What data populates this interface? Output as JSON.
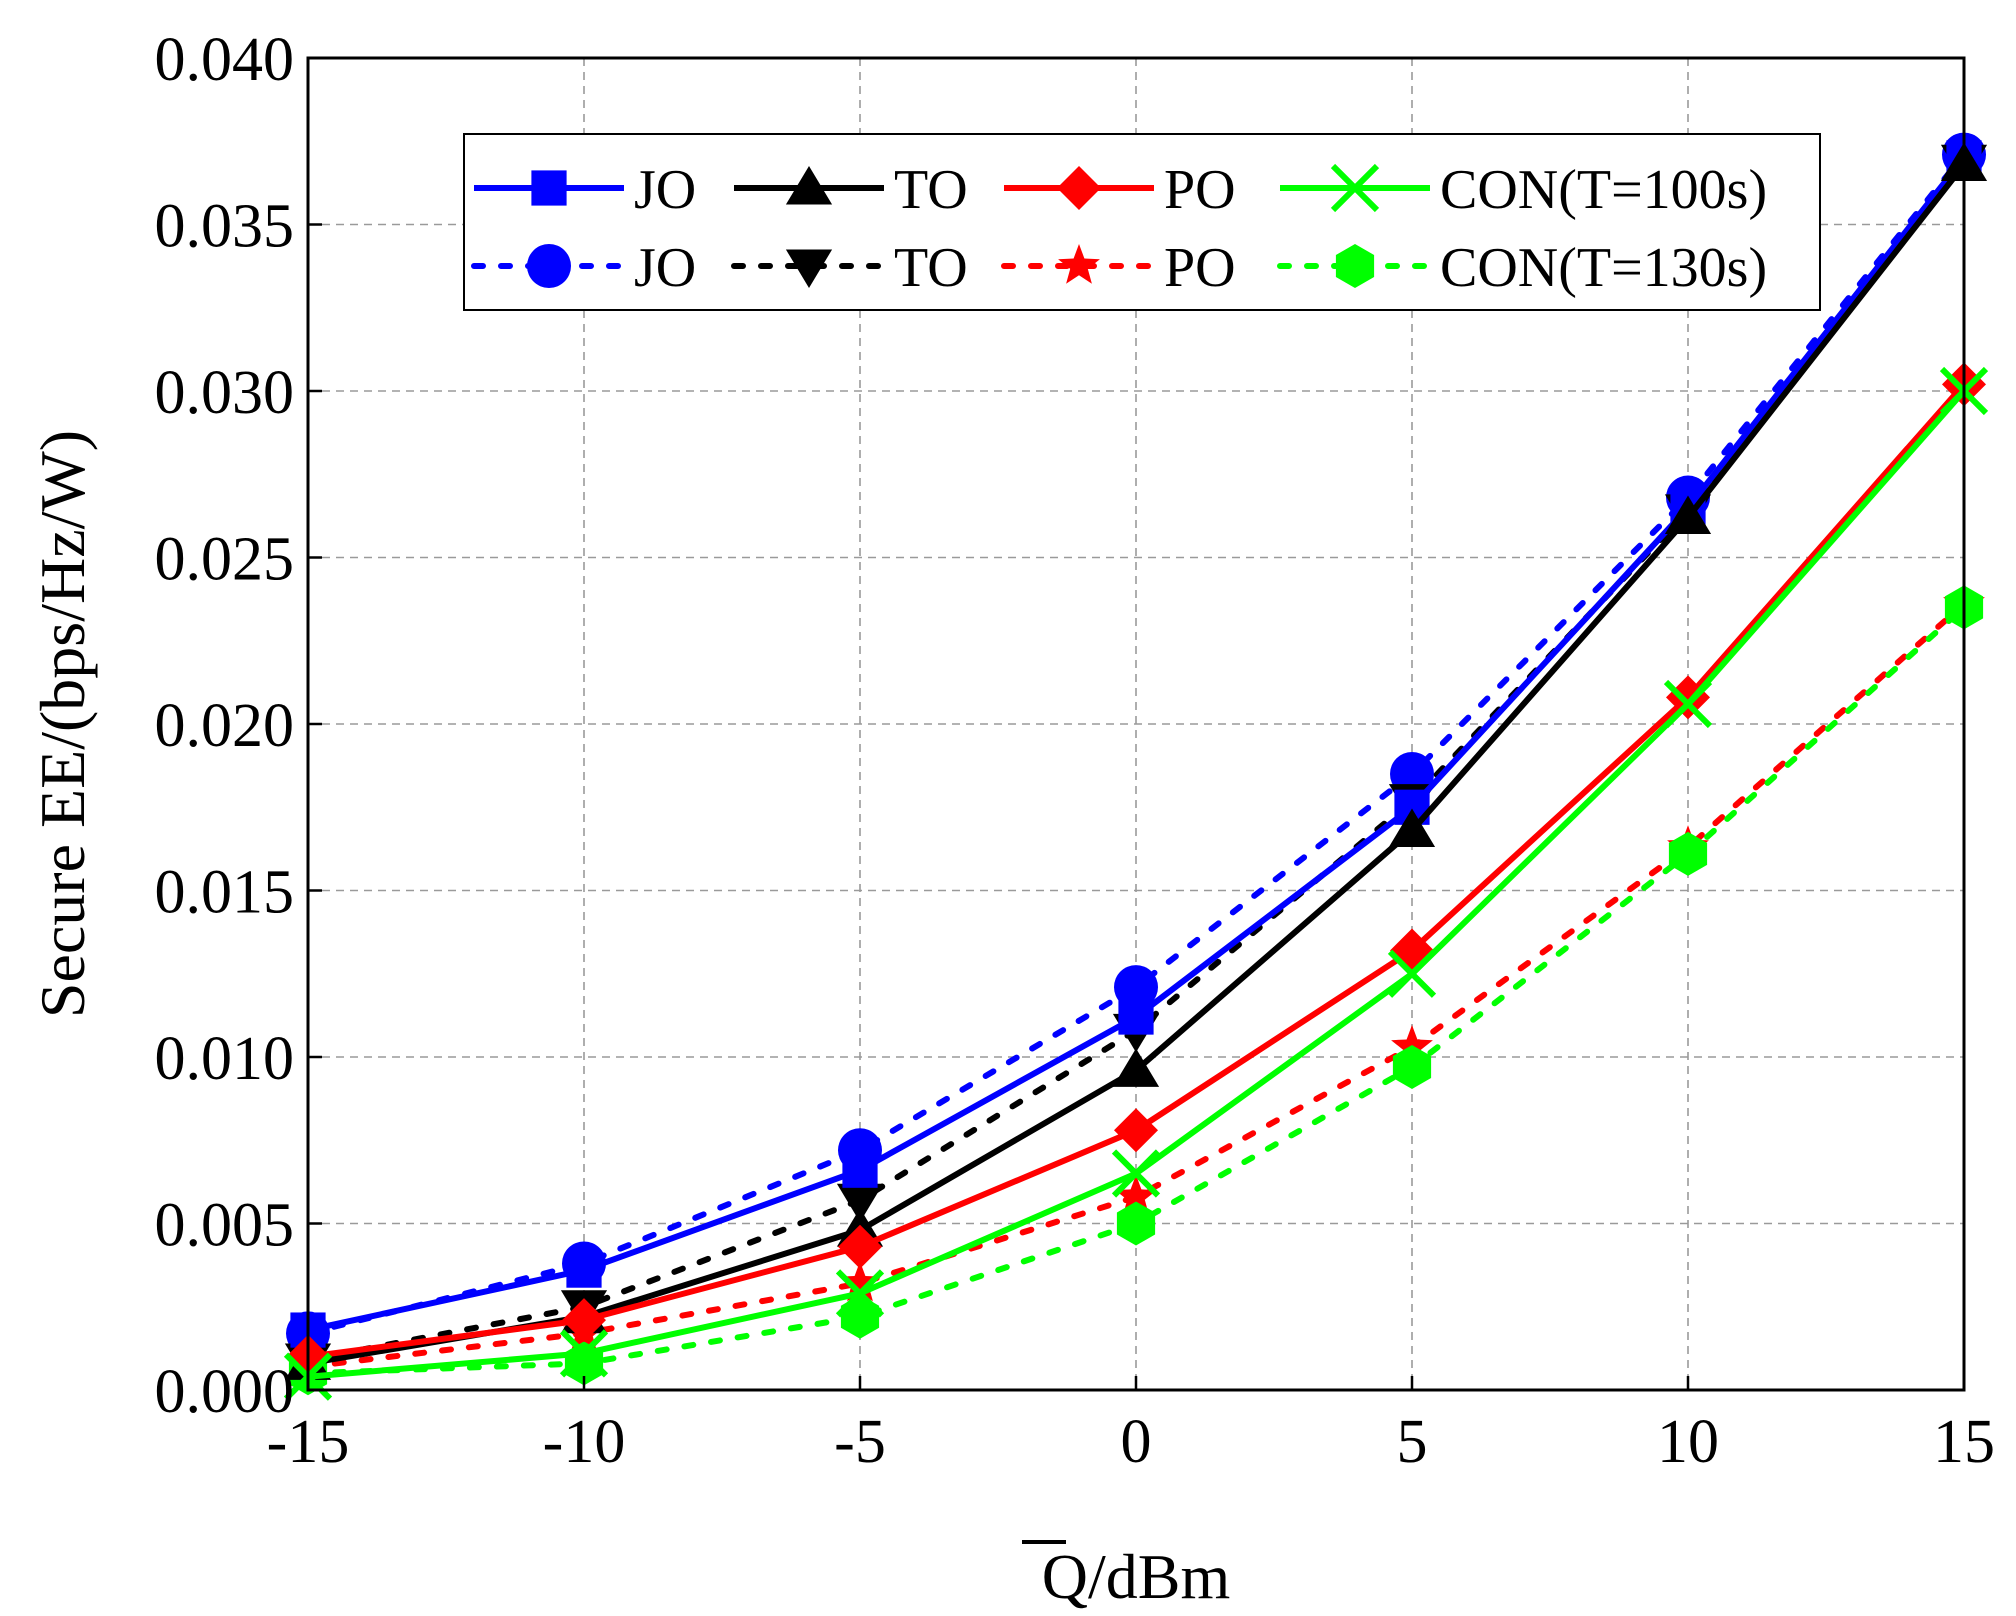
{
  "chart_data": {
    "type": "line",
    "title": "",
    "xlabel_overline": "Q",
    "xlabel_suffix": "/dBm",
    "ylabel": "Secure EE/(bps/Hz/W)",
    "x": [
      -15,
      -10,
      -5,
      0,
      5,
      10,
      15
    ],
    "xlim": [
      -15,
      15
    ],
    "ylim": [
      0,
      0.04
    ],
    "x_ticks": [
      "-15",
      "-10",
      "-5",
      "0",
      "5",
      "10",
      "15"
    ],
    "y_ticks": [
      "0.000",
      "0.005",
      "0.010",
      "0.015",
      "0.020",
      "0.025",
      "0.030",
      "0.035",
      "0.040"
    ],
    "grid": true,
    "legend_position": "top",
    "series": [
      {
        "name": "JO",
        "group": "CON(T=100s)",
        "color": "#0000ff",
        "style": "solid",
        "marker": "square",
        "values": [
          0.0018,
          0.0036,
          0.0066,
          0.0112,
          0.0175,
          0.0265,
          0.037
        ]
      },
      {
        "name": "TO",
        "group": "CON(T=100s)",
        "color": "#000000",
        "style": "solid",
        "marker": "triangle-up",
        "values": [
          0.0008,
          0.0022,
          0.0048,
          0.0096,
          0.0168,
          0.0262,
          0.0368
        ]
      },
      {
        "name": "PO",
        "group": "CON(T=100s)",
        "color": "#ff0000",
        "style": "solid",
        "marker": "diamond",
        "values": [
          0.001,
          0.0021,
          0.0043,
          0.0078,
          0.0132,
          0.0208,
          0.0302
        ]
      },
      {
        "name": "CON(T=100s)",
        "group": "CON(T=100s)",
        "color": "#00ff00",
        "style": "solid",
        "marker": "x",
        "values": [
          0.0004,
          0.0011,
          0.0029,
          0.0065,
          0.0125,
          0.0206,
          0.03
        ]
      },
      {
        "name": "JO",
        "group": "CON(T=130s)",
        "color": "#0000ff",
        "style": "dotted",
        "marker": "circle",
        "values": [
          0.0017,
          0.0038,
          0.0072,
          0.0121,
          0.0185,
          0.0268,
          0.0371
        ]
      },
      {
        "name": "TO",
        "group": "CON(T=130s)",
        "color": "#000000",
        "style": "dotted",
        "marker": "triangle-down",
        "values": [
          0.0009,
          0.0025,
          0.0057,
          0.0108,
          0.0177,
          0.0264,
          0.0369
        ]
      },
      {
        "name": "PO",
        "group": "CON(T=130s)",
        "color": "#ff0000",
        "style": "dotted",
        "marker": "star",
        "values": [
          0.0007,
          0.0017,
          0.0032,
          0.0058,
          0.0103,
          0.0163,
          0.0236
        ]
      },
      {
        "name": "CON(T=130s)",
        "group": "CON(T=130s)",
        "color": "#00ff00",
        "style": "dotted",
        "marker": "hexagon",
        "values": [
          0.0005,
          0.0008,
          0.0022,
          0.005,
          0.0097,
          0.0161,
          0.0235
        ]
      }
    ]
  }
}
